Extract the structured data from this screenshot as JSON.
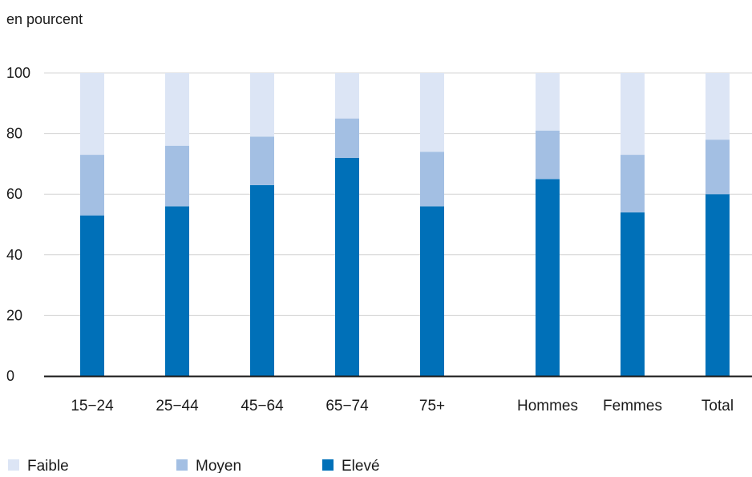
{
  "chart_data": {
    "type": "bar",
    "stacked": true,
    "unit_label": "en pourcent",
    "categories": [
      "15−24",
      "25−44",
      "45−64",
      "65−74",
      "75+",
      "Hommes",
      "Femmes",
      "Total"
    ],
    "series": [
      {
        "name": "Elevé",
        "color": "#0070b8",
        "values": [
          53,
          56,
          63,
          72,
          56,
          65,
          54,
          60
        ]
      },
      {
        "name": "Moyen",
        "color": "#a3bfe3",
        "values": [
          20,
          20,
          16,
          13,
          18,
          16,
          19,
          18
        ]
      },
      {
        "name": "Faible",
        "color": "#dce5f5",
        "values": [
          27,
          24,
          21,
          15,
          26,
          19,
          27,
          22
        ]
      }
    ],
    "legend_order": [
      "Faible",
      "Moyen",
      "Elevé"
    ],
    "ylim": [
      0,
      100
    ],
    "yticks": [
      "0",
      "20",
      "40",
      "60",
      "80",
      "100"
    ],
    "grid": true,
    "legend_position": "bottom-left"
  }
}
